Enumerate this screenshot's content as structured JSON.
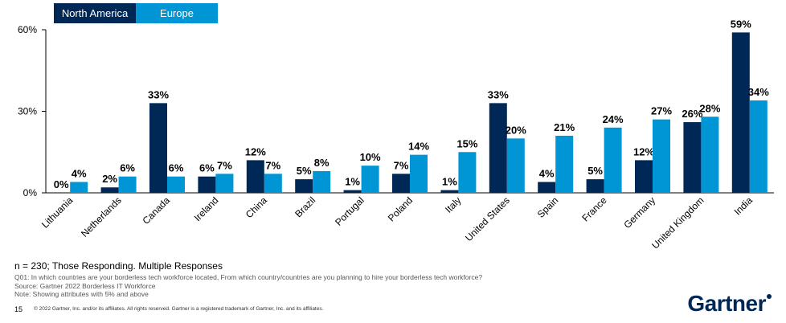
{
  "chart_data": {
    "type": "bar",
    "categories": [
      "Lithuania",
      "Netherlands",
      "Canada",
      "Ireland",
      "China",
      "Brazil",
      "Portugal",
      "Poland",
      "Italy",
      "United States",
      "Spain",
      "France",
      "Germany",
      "United Kingdom",
      "India"
    ],
    "series": [
      {
        "name": "North America",
        "values": [
          0,
          2,
          33,
          6,
          12,
          5,
          1,
          7,
          1,
          33,
          4,
          5,
          12,
          26,
          59
        ],
        "color": "#002856"
      },
      {
        "name": "Europe",
        "values": [
          4,
          6,
          6,
          7,
          7,
          8,
          10,
          14,
          15,
          20,
          21,
          24,
          27,
          28,
          34
        ],
        "color": "#0096d6"
      }
    ],
    "value_labels": {
      "North America": [
        "0%",
        "2%",
        "33%",
        "6%",
        "12%",
        "5%",
        "1%",
        "7%",
        "1%",
        "33%",
        "4%",
        "5%",
        "12%",
        "26%",
        "59%"
      ],
      "Europe": [
        "4%",
        "6%",
        "6%",
        "7%",
        "7%",
        "8%",
        "10%",
        "14%",
        "15%",
        "20%",
        "21%",
        "24%",
        "27%",
        "28%",
        "34%"
      ]
    },
    "yticks": [
      "0%",
      "30%",
      "60%"
    ],
    "ytick_values": [
      0,
      30,
      60
    ],
    "ylim": [
      0,
      60
    ],
    "legend": "top-left",
    "grid": false
  },
  "footer": {
    "sample": "n = 230; Those Responding. Multiple Responses",
    "question": "Q01: In which countries are your borderless tech workforce located, From which country/countries are you planning to hire your borderless tech workforce?",
    "source": "Source: Gartner 2022 Borderless IT Workforce",
    "note": "Note: Showing attributes with 5% and above",
    "page_number": "15",
    "copyright": "© 2022 Gartner, Inc. and/or its affiliates. All rights reserved. Gartner is a registered trademark of Gartner, Inc. and its affiliates.",
    "logo_text": "Gartner"
  }
}
